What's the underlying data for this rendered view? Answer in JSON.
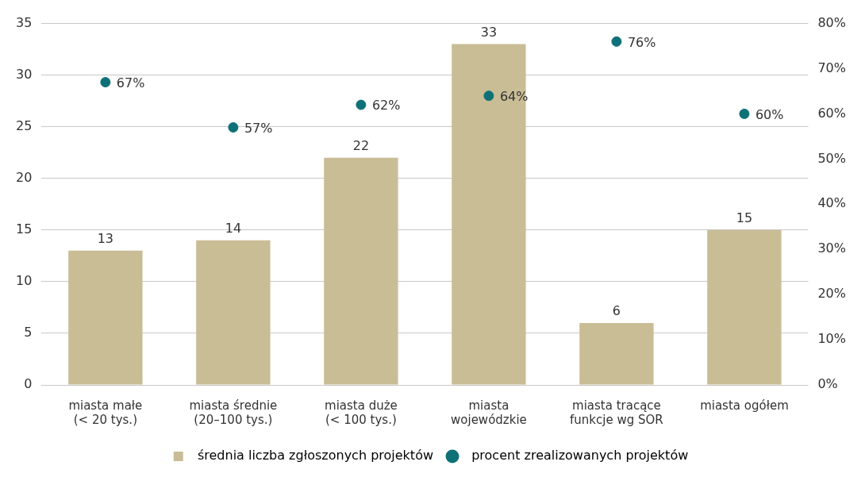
{
  "chart_data": {
    "type": "bar",
    "categories": [
      "miasta małe\n(< 20 tys.)",
      "miasta średnie\n(20–100 tys.)",
      "miasta duże\n(< 100 tys.)",
      "miasta\nwojewódzkie",
      "miasta tracące\nfunkcje wg SOR",
      "miasta ogółem"
    ],
    "series": [
      {
        "name": "średnia liczba zgłoszonych projektów",
        "color": "#c9bd96",
        "values": [
          13,
          14,
          22,
          33,
          6,
          15
        ],
        "value_labels": [
          "13",
          "14",
          "22",
          "33",
          "6",
          "15"
        ]
      },
      {
        "name": "procent zrealizowanych projektów",
        "type": "scatter",
        "axis": "y2",
        "color": "#0e7177",
        "marker": "circle",
        "values": [
          67,
          57,
          62,
          64,
          76,
          60
        ],
        "value_labels": [
          "67%",
          "57%",
          "62%",
          "64%",
          "76%",
          "60%"
        ]
      }
    ],
    "ylim": [
      0,
      35
    ],
    "yticks": [
      0,
      5,
      10,
      15,
      20,
      25,
      30,
      35
    ],
    "y2lim": [
      0,
      80
    ],
    "y2ticks": [
      {
        "value": 0,
        "label": "0%"
      },
      {
        "value": 10,
        "label": "10%"
      },
      {
        "value": 20,
        "label": "20%"
      },
      {
        "value": 30,
        "label": "30%"
      },
      {
        "value": 40,
        "label": "40%"
      },
      {
        "value": 50,
        "label": "50%"
      },
      {
        "value": 60,
        "label": "60%"
      },
      {
        "value": 70,
        "label": "70%"
      },
      {
        "value": 80,
        "label": "80%"
      }
    ],
    "grid": "y",
    "legend": "bottom"
  }
}
